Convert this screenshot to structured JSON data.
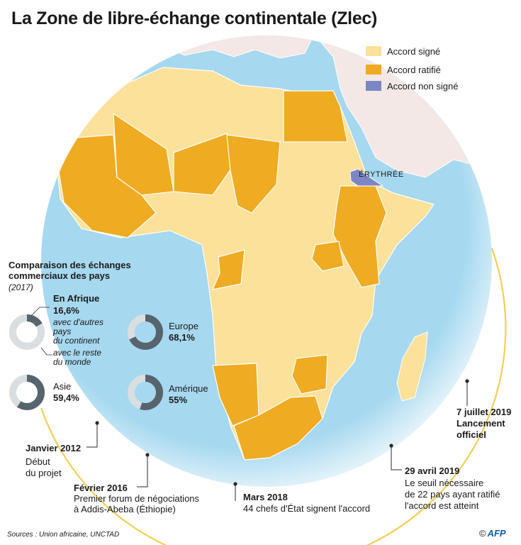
{
  "title": "La Zone de libre-échange continentale (Zlec)",
  "legend": [
    {
      "label": "Accord signé",
      "color": "#fbe199"
    },
    {
      "label": "Accord ratifié",
      "color": "#efab22"
    },
    {
      "label": "Accord non signé",
      "color": "#7d86c4"
    }
  ],
  "map_label": "ÉRYTHRÉE",
  "comparison": {
    "title_line1": "Comparaison des échanges",
    "title_line2": "commerciaux des pays",
    "year": "(2017)",
    "africa": {
      "region": "En Afrique",
      "value": "16,6%",
      "note_line1": "avec d'autres",
      "note_line2": "pays",
      "note_line3": "du continent",
      "rest_line1": "avec le reste",
      "rest_line2": "du monde",
      "share": 0.166
    },
    "europe": {
      "region": "Europe",
      "value": "68,1%",
      "share": 0.681
    },
    "asia": {
      "region": "Asie",
      "value": "59,4%",
      "share": 0.594
    },
    "america": {
      "region": "Amérique",
      "value": "55%",
      "share": 0.55
    }
  },
  "timeline": {
    "m1": {
      "date": "Janvier 2012",
      "line1": "Début",
      "line2": "du projet"
    },
    "m2": {
      "date": "Février 2016",
      "line1": "Premier forum de négociations",
      "line2": "à Addis-Abeba (Éthiopie)"
    },
    "m3": {
      "date": "Mars 2018",
      "line1": "44 chefs d'État signent l'accord"
    },
    "m4": {
      "date": "29 avril 2019",
      "line1": "Le seuil nécessaire",
      "line2": "de 22 pays ayant ratifié",
      "line3": "l'accord est atteint"
    },
    "m5": {
      "date": "7 juillet 2019",
      "line1": "Lancement",
      "line2": "officiel"
    }
  },
  "colors": {
    "ocean": "#a6d8ef",
    "ocean_edge": "#ffffff",
    "land_other": "#f3e8e5",
    "signed": "#fbe199",
    "ratified": "#efab22",
    "not_signed": "#7d86c4",
    "timeline": "#f2cf55",
    "donut_dark": "#56646d",
    "donut_light": "#d9dee1"
  },
  "sources": "Sources : Union africaine, UNCTAD",
  "credit": {
    "symbol": "©",
    "brand": "AFP"
  }
}
